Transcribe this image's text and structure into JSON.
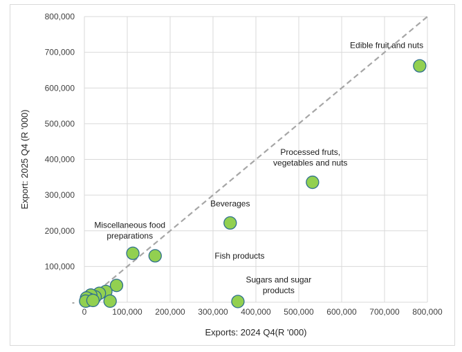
{
  "chart_data": {
    "type": "scatter",
    "xlabel": "Exports: 2024 Q4(R '000)",
    "ylabel": "Export: 2025 Q4 (R '000)",
    "xlim": [
      0,
      800000
    ],
    "ylim": [
      0,
      800000
    ],
    "x_ticks": [
      0,
      100000,
      200000,
      300000,
      400000,
      500000,
      600000,
      700000,
      800000
    ],
    "y_ticks": [
      0,
      100000,
      200000,
      300000,
      400000,
      500000,
      600000,
      700000,
      800000
    ],
    "x_tick_labels": [
      "0",
      "100,000",
      "200,000",
      "300,000",
      "400,000",
      "500,000",
      "600,000",
      "700,000",
      "800,000"
    ],
    "y_tick_labels": [
      "-",
      "100,000",
      "200,000",
      "300,000",
      "400,000",
      "500,000",
      "600,000",
      "700,000",
      "800,000"
    ],
    "grid": true,
    "reference_line": {
      "style": "dashed",
      "from": [
        0,
        0
      ],
      "to": [
        800000,
        800000
      ],
      "color": "#a6a6a6"
    },
    "marker_fill": "#92d050",
    "marker_stroke": "#2f6f8f",
    "points": [
      {
        "x": 782000,
        "y": 662000,
        "label": "Edible fruit and nuts"
      },
      {
        "x": 532000,
        "y": 336000,
        "label": "Processed fruts, vegetables and nuts"
      },
      {
        "x": 340000,
        "y": 222000,
        "label": "Beverages"
      },
      {
        "x": 113000,
        "y": 137000,
        "label": "Miscellaneous food preparations"
      },
      {
        "x": 165000,
        "y": 130000,
        "label": ""
      },
      {
        "x": 358000,
        "y": 2000,
        "label": "Sugars and sugar products"
      },
      {
        "x": 75000,
        "y": 47000,
        "label": ""
      },
      {
        "x": 50000,
        "y": 30000,
        "label": ""
      },
      {
        "x": 35000,
        "y": 25000,
        "label": ""
      },
      {
        "x": 25000,
        "y": 15000,
        "label": ""
      },
      {
        "x": 15000,
        "y": 20000,
        "label": ""
      },
      {
        "x": 12000,
        "y": 8000,
        "label": ""
      },
      {
        "x": 8000,
        "y": 5000,
        "label": ""
      },
      {
        "x": 5000,
        "y": 12000,
        "label": ""
      },
      {
        "x": 3000,
        "y": 3000,
        "label": ""
      },
      {
        "x": 20000,
        "y": 5000,
        "label": ""
      },
      {
        "x": 60000,
        "y": 3000,
        "label": ""
      }
    ],
    "annotations": [
      {
        "text": "Edible fruit and nuts",
        "x": 705000,
        "y": 712000,
        "anchor": "middle"
      },
      {
        "text": "Processed fruts,",
        "x": 527000,
        "y": 413000,
        "anchor": "middle"
      },
      {
        "text": "vegetables and nuts",
        "x": 527000,
        "y": 383000,
        "anchor": "middle"
      },
      {
        "text": "Beverages",
        "x": 340000,
        "y": 268000,
        "anchor": "middle"
      },
      {
        "text": "Miscellaneous food",
        "x": 106000,
        "y": 208000,
        "anchor": "middle"
      },
      {
        "text": "preparations",
        "x": 106000,
        "y": 178000,
        "anchor": "middle"
      },
      {
        "text": "Fish products",
        "x": 362000,
        "y": 122000,
        "anchor": "middle"
      },
      {
        "text": "Sugars and sugar",
        "x": 453000,
        "y": 55000,
        "anchor": "middle"
      },
      {
        "text": "products",
        "x": 453000,
        "y": 25000,
        "anchor": "middle"
      }
    ]
  }
}
